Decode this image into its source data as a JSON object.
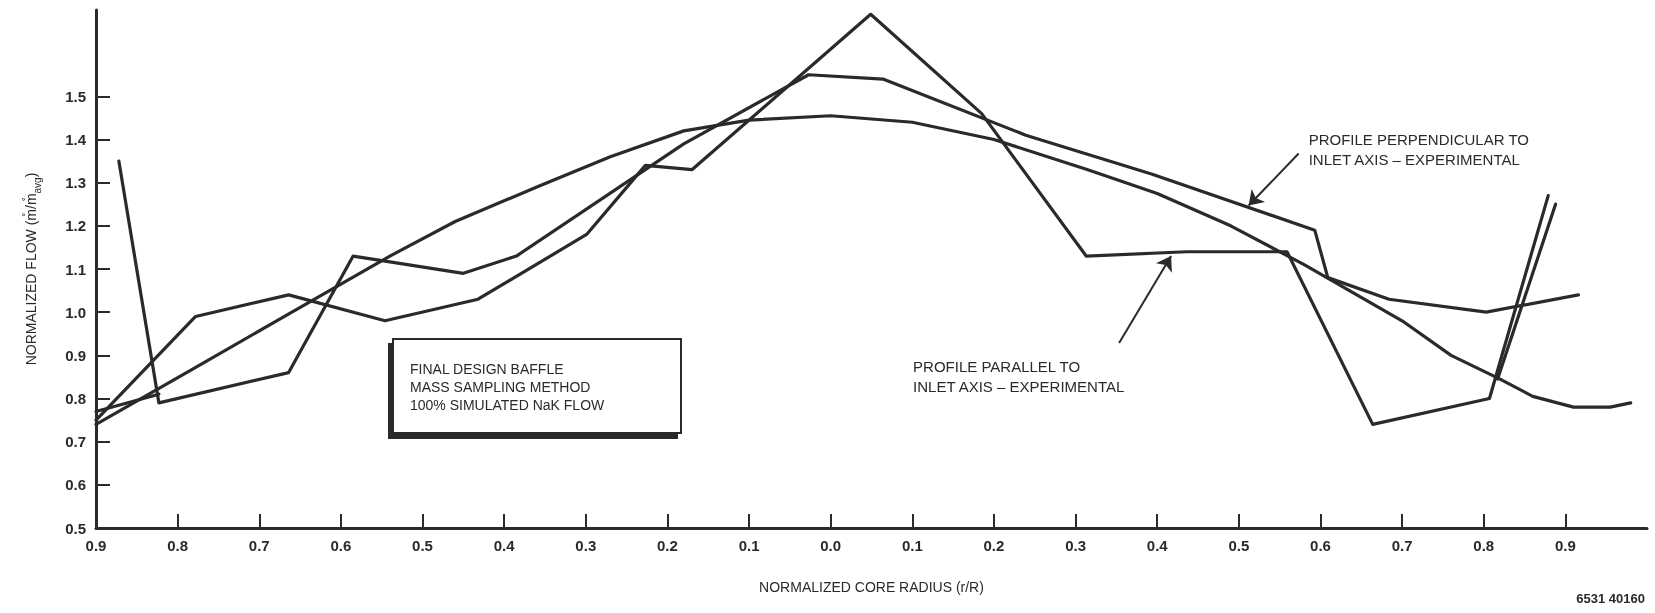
{
  "chart_data": {
    "type": "line",
    "xlabel": "NORMALIZED CORE RADIUS (r/R)",
    "ylabel": "NORMALIZED FLOW (m̊/m̊$_{avg}$)",
    "xlim": [
      -0.9,
      1.0
    ],
    "ylim": [
      0.5,
      1.7
    ],
    "xticks": [
      {
        "value": -0.9,
        "label": "0.9"
      },
      {
        "value": -0.8,
        "label": "0.8"
      },
      {
        "value": -0.7,
        "label": "0.7"
      },
      {
        "value": -0.6,
        "label": "0.6"
      },
      {
        "value": -0.5,
        "label": "0.5"
      },
      {
        "value": -0.4,
        "label": "0.4"
      },
      {
        "value": -0.3,
        "label": "0.3"
      },
      {
        "value": -0.2,
        "label": "0.2"
      },
      {
        "value": -0.1,
        "label": "0.1"
      },
      {
        "value": 0,
        "label": "0.0"
      },
      {
        "value": 0.1,
        "label": "0.1"
      },
      {
        "value": 0.2,
        "label": "0.2"
      },
      {
        "value": 0.3,
        "label": "0.3"
      },
      {
        "value": 0.4,
        "label": "0.4"
      },
      {
        "value": 0.5,
        "label": "0.5"
      },
      {
        "value": 0.6,
        "label": "0.6"
      },
      {
        "value": 0.7,
        "label": "0.7"
      },
      {
        "value": 0.8,
        "label": "0.8"
      },
      {
        "value": 0.9,
        "label": "0.9"
      }
    ],
    "yticks": [
      {
        "value": 0.5,
        "label": "0.5"
      },
      {
        "value": 0.6,
        "label": "0.6"
      },
      {
        "value": 0.7,
        "label": "0.7"
      },
      {
        "value": 0.8,
        "label": "0.8"
      },
      {
        "value": 0.9,
        "label": "0.9"
      },
      {
        "value": 1.0,
        "label": "1.0"
      },
      {
        "value": 1.1,
        "label": "1.1"
      },
      {
        "value": 1.2,
        "label": "1.2"
      },
      {
        "value": 1.3,
        "label": "1.3"
      },
      {
        "value": 1.4,
        "label": "1.4"
      },
      {
        "value": 1.5,
        "label": "1.5"
      }
    ],
    "grid": false,
    "marker": "none",
    "line_style": "solid",
    "series": [
      {
        "color": "#2a2a2a",
        "x": [
          -0.9,
          -0.78,
          -0.66,
          -0.54,
          -0.46,
          -0.36,
          -0.27,
          -0.18,
          -0.1,
          0,
          0.1,
          0.2,
          0.315,
          0.4,
          0.49,
          0.58,
          0.7,
          0.76,
          0.82,
          0.86,
          0.91,
          0.955,
          0.98
        ],
        "values": [
          0.74,
          0.87,
          1.0,
          1.13,
          1.21,
          1.29,
          1.36,
          1.42,
          1.445,
          1.455,
          1.44,
          1.4,
          1.33,
          1.275,
          1.2,
          1.11,
          0.98,
          0.9,
          0.845,
          0.805,
          0.78,
          0.78,
          0.79
        ]
      },
      {
        "color": "#2a2a2a",
        "x": [
          -0.872,
          -0.823,
          -0.664,
          -0.585,
          -0.45,
          -0.385,
          -0.18,
          -0.027,
          0.064,
          0.239,
          0.393,
          0.593,
          0.609,
          0.684,
          0.803,
          0.916
        ],
        "values": [
          1.35,
          0.79,
          0.86,
          1.13,
          1.09,
          1.13,
          1.39,
          1.55,
          1.54,
          1.41,
          1.32,
          1.19,
          1.08,
          1.03,
          1.0,
          1.04
        ]
      },
      {
        "color": "#2a2a2a",
        "x": [
          -0.9,
          -0.778,
          -0.664,
          -0.546,
          -0.432,
          -0.299,
          -0.227,
          -0.17,
          0.049,
          0.185,
          0.313,
          0.436,
          0.559,
          0.664,
          0.807,
          0.879
        ],
        "values": [
          0.75,
          0.99,
          1.04,
          0.98,
          1.03,
          1.18,
          1.34,
          1.33,
          1.69,
          1.46,
          1.13,
          1.14,
          1.14,
          0.74,
          0.8,
          1.27
        ]
      },
      {
        "color": "#2a2a2a",
        "x": [
          -0.9,
          -0.823,
          null,
          0.817,
          0.888
        ],
        "values": [
          0.77,
          0.81,
          null,
          0.845,
          1.25
        ]
      }
    ],
    "annotations": [
      {
        "text": "PROFILE PERPENDICULAR TO\nINLET AXIS – EXPERIMENTAL",
        "x": 0.512,
        "y": 1.247
      },
      {
        "text": "PROFILE PARALLEL TO\nINLET AXIS – EXPERIMENTAL",
        "x": 0.417,
        "y": 1.13
      },
      "FINAL DESIGN BAFFLE\nMASS SAMPLING METHOD\n100% SIMULATED NaK FLOW",
      "6531 40160"
    ]
  }
}
